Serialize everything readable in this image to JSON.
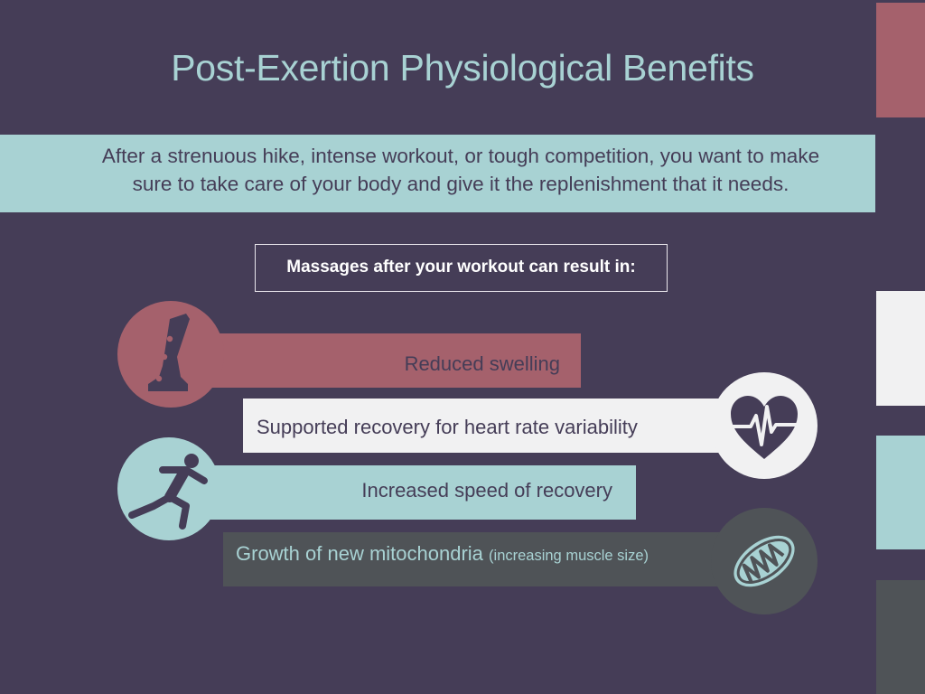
{
  "title": "Post-Exertion Physiological Benefits",
  "intro": {
    "line1": "After a strenuous hike, intense workout, or tough competition, you want to make",
    "line2": "sure to take care of your body and give it the replenishment that it needs."
  },
  "subtitle": "Massages after your workout can result in:",
  "benefits": [
    {
      "text": "Reduced swelling",
      "icon": "leg-icon"
    },
    {
      "text": "Supported recovery for heart rate variability",
      "icon": "heart-rate-icon"
    },
    {
      "text": "Increased speed of recovery",
      "icon": "runner-icon"
    },
    {
      "text": "Growth of new mitochondria",
      "note": "(increasing muscle size)",
      "icon": "mitochondria-icon"
    }
  ],
  "colors": {
    "background": "#453d57",
    "mauve": "#a5616c",
    "light_teal": "#a8d2d3",
    "off_white": "#f1f1f2",
    "slate_gray": "#4f5357"
  }
}
